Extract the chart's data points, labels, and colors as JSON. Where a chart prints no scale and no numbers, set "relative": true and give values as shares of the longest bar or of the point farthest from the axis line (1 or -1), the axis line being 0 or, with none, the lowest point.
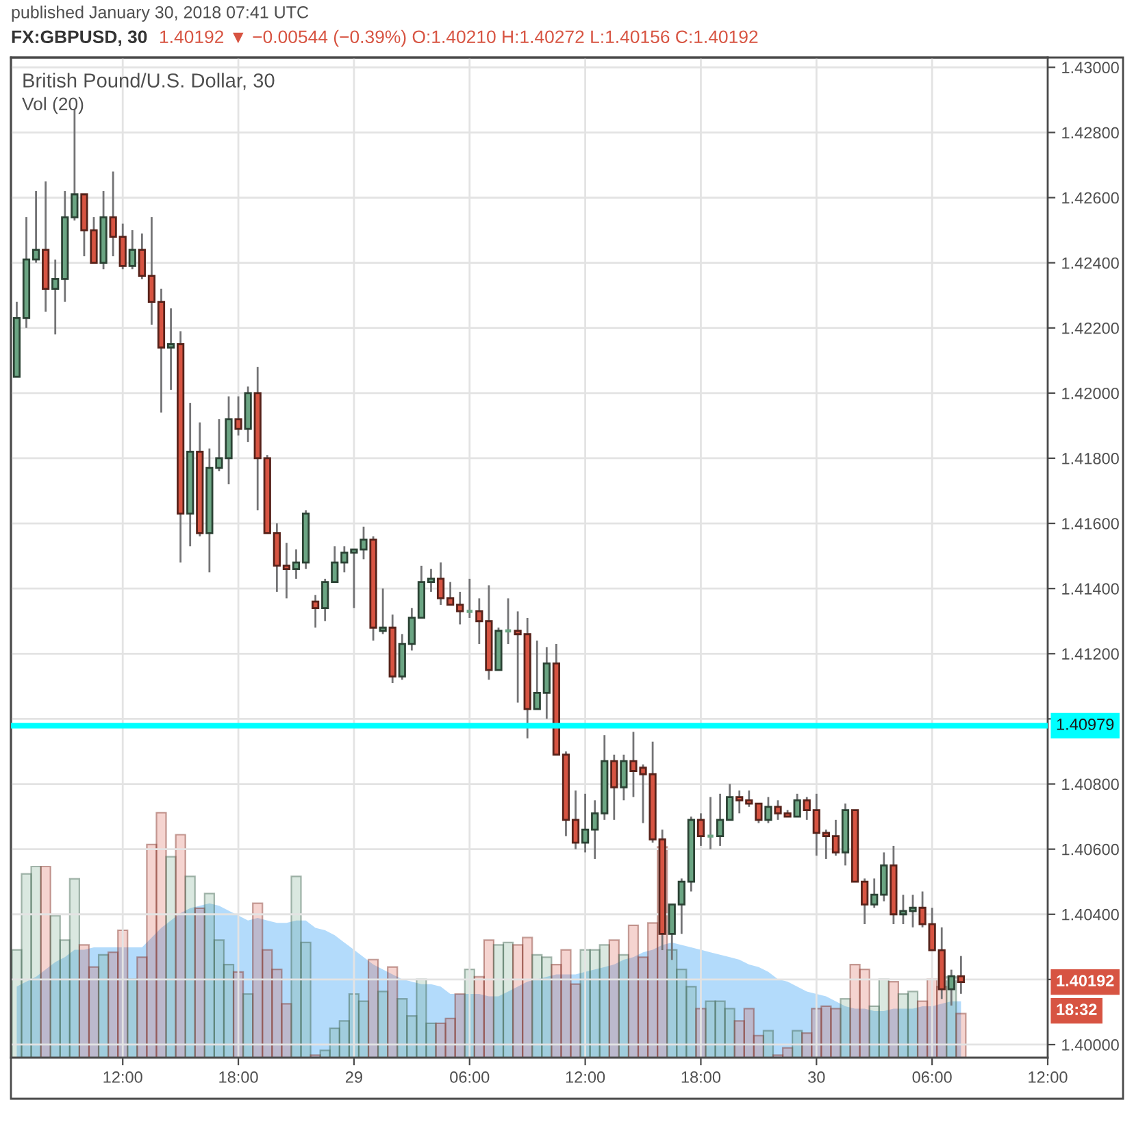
{
  "chart_data": [
    {
      "type": "candlestick",
      "title": "FX:GBPUSD, 30",
      "subtitle": "1.40192 ▼ −0.00544 (−0.39%) O:1.40210 H:1.40272 L:1.40156 C:1.40192",
      "annotations": [
        "published January 30, 2018 07:41 UTC",
        "British Pound/U.S. Dollar, 30",
        "1.40192",
        "18:32"
      ],
      "x": [
        "2018-01-28T06:30",
        "2018-01-28T07:00",
        "2018-01-28T07:30",
        "2018-01-28T08:00",
        "2018-01-28T08:30",
        "2018-01-28T09:00",
        "2018-01-28T09:30",
        "2018-01-28T10:00",
        "2018-01-28T10:30",
        "2018-01-28T11:00",
        "2018-01-28T11:30",
        "2018-01-28T12:00",
        "2018-01-28T12:30",
        "2018-01-28T13:00",
        "2018-01-28T13:30",
        "2018-01-28T14:00",
        "2018-01-28T14:30",
        "2018-01-28T15:00",
        "2018-01-28T15:30",
        "2018-01-28T16:00",
        "2018-01-28T16:30",
        "2018-01-28T17:00",
        "2018-01-28T17:30",
        "2018-01-28T18:00",
        "2018-01-28T18:30",
        "2018-01-28T19:00",
        "2018-01-28T19:30",
        "2018-01-28T20:00",
        "2018-01-28T20:30",
        "2018-01-28T21:00",
        "2018-01-28T21:30",
        "2018-01-28T22:00",
        "2018-01-28T22:30",
        "2018-01-28T23:00",
        "2018-01-28T23:30",
        "2018-01-29T00:00",
        "2018-01-29T00:30",
        "2018-01-29T01:00",
        "2018-01-29T01:30",
        "2018-01-29T02:00",
        "2018-01-29T02:30",
        "2018-01-29T03:00",
        "2018-01-29T03:30",
        "2018-01-29T04:00",
        "2018-01-29T04:30",
        "2018-01-29T05:00",
        "2018-01-29T05:30",
        "2018-01-29T06:00",
        "2018-01-29T06:30",
        "2018-01-29T07:00",
        "2018-01-29T07:30",
        "2018-01-29T08:00",
        "2018-01-29T08:30",
        "2018-01-29T09:00",
        "2018-01-29T09:30",
        "2018-01-29T10:00",
        "2018-01-29T10:30",
        "2018-01-29T11:00",
        "2018-01-29T11:30",
        "2018-01-29T12:00",
        "2018-01-29T12:30",
        "2018-01-29T13:00",
        "2018-01-29T13:30",
        "2018-01-29T14:00",
        "2018-01-29T14:30",
        "2018-01-29T15:00",
        "2018-01-29T15:30",
        "2018-01-29T16:00",
        "2018-01-29T16:30",
        "2018-01-29T17:00",
        "2018-01-29T17:30",
        "2018-01-29T18:00",
        "2018-01-29T18:30",
        "2018-01-29T19:00",
        "2018-01-29T19:30",
        "2018-01-29T20:00",
        "2018-01-29T20:30",
        "2018-01-29T21:00",
        "2018-01-29T21:30",
        "2018-01-29T22:00",
        "2018-01-29T22:30",
        "2018-01-29T23:00",
        "2018-01-29T23:30",
        "2018-01-30T00:00",
        "2018-01-30T00:30",
        "2018-01-30T01:00",
        "2018-01-30T01:30",
        "2018-01-30T02:00",
        "2018-01-30T02:30",
        "2018-01-30T03:00",
        "2018-01-30T03:30",
        "2018-01-30T04:00",
        "2018-01-30T04:30",
        "2018-01-30T05:00",
        "2018-01-30T05:30",
        "2018-01-30T06:00",
        "2018-01-30T06:30",
        "2018-01-30T07:00",
        "2018-01-30T07:30"
      ],
      "ohlc": [
        [
          1.4205,
          1.4228,
          1.4205,
          1.4223
        ],
        [
          1.4223,
          1.4254,
          1.422,
          1.4241
        ],
        [
          1.4241,
          1.4262,
          1.424,
          1.4244
        ],
        [
          1.4244,
          1.4265,
          1.4225,
          1.4232
        ],
        [
          1.4232,
          1.4241,
          1.4218,
          1.4235
        ],
        [
          1.4235,
          1.4262,
          1.4228,
          1.4254
        ],
        [
          1.4254,
          1.4287,
          1.4253,
          1.4261
        ],
        [
          1.4261,
          1.4261,
          1.4242,
          1.425
        ],
        [
          1.425,
          1.4254,
          1.424,
          1.424
        ],
        [
          1.424,
          1.4262,
          1.4238,
          1.4254
        ],
        [
          1.4254,
          1.4268,
          1.4242,
          1.4248
        ],
        [
          1.4248,
          1.4252,
          1.4238,
          1.4239
        ],
        [
          1.4239,
          1.425,
          1.4238,
          1.4244
        ],
        [
          1.4244,
          1.4249,
          1.4235,
          1.4236
        ],
        [
          1.4236,
          1.4254,
          1.4221,
          1.4228
        ],
        [
          1.4228,
          1.4232,
          1.4194,
          1.4214
        ],
        [
          1.4214,
          1.4226,
          1.4201,
          1.4215
        ],
        [
          1.4215,
          1.4219,
          1.4148,
          1.4163
        ],
        [
          1.4163,
          1.4197,
          1.4153,
          1.4182
        ],
        [
          1.4182,
          1.4191,
          1.4156,
          1.4157
        ],
        [
          1.4157,
          1.4183,
          1.4145,
          1.4177
        ],
        [
          1.4177,
          1.4192,
          1.4176,
          1.418
        ],
        [
          1.418,
          1.4199,
          1.4172,
          1.4192
        ],
        [
          1.4192,
          1.4199,
          1.4187,
          1.4189
        ],
        [
          1.4189,
          1.4202,
          1.4185,
          1.42
        ],
        [
          1.42,
          1.4208,
          1.4164,
          1.418
        ],
        [
          1.418,
          1.4181,
          1.4157,
          1.4157
        ],
        [
          1.4157,
          1.416,
          1.4139,
          1.4147
        ],
        [
          1.4147,
          1.4154,
          1.4137,
          1.4146
        ],
        [
          1.4146,
          1.4152,
          1.4143,
          1.4148
        ],
        [
          1.4148,
          1.4164,
          1.4146,
          1.4163
        ],
        [
          1.4136,
          1.4138,
          1.4128,
          1.4134
        ],
        [
          1.4134,
          1.4143,
          1.413,
          1.4142
        ],
        [
          1.4142,
          1.4153,
          1.4142,
          1.4148
        ],
        [
          1.4148,
          1.4153,
          1.4145,
          1.4151
        ],
        [
          1.4151,
          1.4152,
          1.4134,
          1.4152
        ],
        [
          1.4152,
          1.4159,
          1.4149,
          1.4155
        ],
        [
          1.4155,
          1.4156,
          1.4124,
          1.4128
        ],
        [
          1.4127,
          1.414,
          1.4126,
          1.4128
        ],
        [
          1.4128,
          1.4132,
          1.4111,
          1.4113
        ],
        [
          1.4113,
          1.4126,
          1.4112,
          1.4123
        ],
        [
          1.4123,
          1.4134,
          1.4121,
          1.4131
        ],
        [
          1.4131,
          1.4147,
          1.4131,
          1.4142
        ],
        [
          1.4142,
          1.4146,
          1.4139,
          1.4143
        ],
        [
          1.4143,
          1.4148,
          1.4135,
          1.4137
        ],
        [
          1.4137,
          1.4142,
          1.4135,
          1.4135
        ],
        [
          1.4135,
          1.4139,
          1.4129,
          1.4133
        ],
        [
          1.4133,
          1.4143,
          1.4131,
          1.4133
        ],
        [
          1.4133,
          1.4137,
          1.4123,
          1.413
        ],
        [
          1.413,
          1.4141,
          1.4112,
          1.4115
        ],
        [
          1.4115,
          1.4128,
          1.4115,
          1.4127
        ],
        [
          1.4127,
          1.4137,
          1.4123,
          1.4127
        ],
        [
          1.4127,
          1.4133,
          1.4105,
          1.4126
        ],
        [
          1.4126,
          1.4131,
          1.4094,
          1.4103
        ],
        [
          1.4103,
          1.4124,
          1.4103,
          1.4108
        ],
        [
          1.4108,
          1.4122,
          1.41,
          1.4117
        ],
        [
          1.4117,
          1.4123,
          1.4089,
          1.4089
        ],
        [
          1.4089,
          1.409,
          1.4064,
          1.4069
        ],
        [
          1.4069,
          1.4078,
          1.406,
          1.4062
        ],
        [
          1.4062,
          1.4077,
          1.4059,
          1.4066
        ],
        [
          1.4066,
          1.4075,
          1.4057,
          1.4071
        ],
        [
          1.4071,
          1.4095,
          1.4069,
          1.4087
        ],
        [
          1.4087,
          1.4089,
          1.4069,
          1.4079
        ],
        [
          1.4079,
          1.4089,
          1.4075,
          1.4087
        ],
        [
          1.4087,
          1.4096,
          1.4076,
          1.4084
        ],
        [
          1.4085,
          1.4086,
          1.4068,
          1.4083
        ],
        [
          1.4083,
          1.4093,
          1.4062,
          1.4063
        ],
        [
          1.4063,
          1.4066,
          1.4029,
          1.4034
        ],
        [
          1.4034,
          1.4043,
          1.4026,
          1.4043
        ],
        [
          1.4043,
          1.4051,
          1.4034,
          1.405
        ],
        [
          1.405,
          1.407,
          1.4047,
          1.4069
        ],
        [
          1.4069,
          1.4071,
          1.4061,
          1.4064
        ],
        [
          1.4064,
          1.4076,
          1.406,
          1.4064
        ],
        [
          1.4064,
          1.4077,
          1.4061,
          1.4069
        ],
        [
          1.4069,
          1.408,
          1.4069,
          1.4076
        ],
        [
          1.4076,
          1.4078,
          1.4071,
          1.4075
        ],
        [
          1.4075,
          1.4078,
          1.4073,
          1.4074
        ],
        [
          1.4074,
          1.4074,
          1.4068,
          1.4069
        ],
        [
          1.4069,
          1.4076,
          1.4068,
          1.4073
        ],
        [
          1.4073,
          1.4075,
          1.4069,
          1.4071
        ],
        [
          1.4071,
          1.4072,
          1.407,
          1.407
        ],
        [
          1.407,
          1.4077,
          1.407,
          1.4075
        ],
        [
          1.4075,
          1.4076,
          1.4069,
          1.4072
        ],
        [
          1.4072,
          1.4077,
          1.4058,
          1.4065
        ],
        [
          1.4065,
          1.4066,
          1.4057,
          1.4064
        ],
        [
          1.4064,
          1.4069,
          1.4058,
          1.4059
        ],
        [
          1.4059,
          1.4074,
          1.4055,
          1.4072
        ],
        [
          1.4072,
          1.4072,
          1.405,
          1.405
        ],
        [
          1.405,
          1.4051,
          1.4037,
          1.4043
        ],
        [
          1.4043,
          1.4051,
          1.4042,
          1.4046
        ],
        [
          1.4046,
          1.4059,
          1.4044,
          1.4055
        ],
        [
          1.4055,
          1.4061,
          1.4037,
          1.404
        ],
        [
          1.404,
          1.4046,
          1.4037,
          1.4041
        ],
        [
          1.4041,
          1.4046,
          1.4036,
          1.4042
        ],
        [
          1.4042,
          1.4047,
          1.4036,
          1.4037
        ],
        [
          1.4037,
          1.4042,
          1.4029,
          1.4029
        ],
        [
          1.4029,
          1.4036,
          1.4014,
          1.4017
        ],
        [
          1.4017,
          1.4023,
          1.4012,
          1.4021
        ],
        [
          1.4021,
          1.40272,
          1.40156,
          1.40192
        ]
      ],
      "colors": [
        "#6ba583",
        "#6ba583",
        "#6ba583",
        "#d75442",
        "#6ba583",
        "#6ba583",
        "#6ba583",
        "#d75442",
        "#d75442",
        "#6ba583",
        "#d75442",
        "#d75442",
        "#6ba583",
        "#d75442",
        "#d75442",
        "#d75442",
        "#6ba583",
        "#d75442",
        "#6ba583",
        "#d75442",
        "#6ba583",
        "#6ba583",
        "#6ba583",
        "#d75442",
        "#6ba583",
        "#d75442",
        "#d75442",
        "#d75442",
        "#d75442",
        "#6ba583",
        "#6ba583",
        "#d75442",
        "#6ba583",
        "#6ba583",
        "#6ba583",
        "#6ba583",
        "#6ba583",
        "#d75442",
        "#6ba583",
        "#d75442",
        "#6ba583",
        "#6ba583",
        "#6ba583",
        "#6ba583",
        "#d75442",
        "#d75442",
        "#d75442",
        "#6ba583",
        "#d75442",
        "#d75442",
        "#6ba583",
        "#6ba583",
        "#d75442",
        "#d75442",
        "#6ba583",
        "#6ba583",
        "#d75442",
        "#d75442",
        "#d75442",
        "#6ba583",
        "#6ba583",
        "#6ba583",
        "#d75442",
        "#6ba583",
        "#d75442",
        "#d75442",
        "#d75442",
        "#d75442",
        "#6ba583",
        "#6ba583",
        "#6ba583",
        "#d75442",
        "#6ba583",
        "#6ba583",
        "#6ba583",
        "#d75442",
        "#d75442",
        "#d75442",
        "#6ba583",
        "#d75442",
        "#d75442",
        "#6ba583",
        "#d75442",
        "#d75442",
        "#d75442",
        "#d75442",
        "#6ba583",
        "#d75442",
        "#d75442",
        "#6ba583",
        "#6ba583",
        "#d75442",
        "#6ba583",
        "#6ba583",
        "#d75442",
        "#d75442",
        "#d75442",
        "#6ba583",
        "#d75442"
      ],
      "xlim": [
        "2018-01-28T06:12",
        "2018-01-30T12:00"
      ],
      "xticks": [
        {
          "value": "2018-01-28T12:00",
          "label": "12:00"
        },
        {
          "value": "2018-01-28T18:00",
          "label": "18:00"
        },
        {
          "value": "2018-01-29T00:00",
          "label": "29"
        },
        {
          "value": "2018-01-29T06:00",
          "label": "06:00"
        },
        {
          "value": "2018-01-29T12:00",
          "label": "12:00"
        },
        {
          "value": "2018-01-29T18:00",
          "label": "18:00"
        },
        {
          "value": "2018-01-30T00:00",
          "label": "30"
        },
        {
          "value": "2018-01-30T06:00",
          "label": "06:00"
        },
        {
          "value": "2018-01-30T12:00",
          "label": "12:00"
        }
      ],
      "ylim": [
        1.3996,
        1.4303
      ],
      "yticks": [
        {
          "value": 1.4,
          "label": "1.40000"
        },
        {
          "value": 1.402,
          "label": null
        },
        {
          "value": 1.404,
          "label": "1.40400"
        },
        {
          "value": 1.406,
          "label": "1.40600"
        },
        {
          "value": 1.408,
          "label": "1.40800"
        },
        {
          "value": 1.41,
          "label": null
        },
        {
          "value": 1.412,
          "label": "1.41200"
        },
        {
          "value": 1.414,
          "label": "1.41400"
        },
        {
          "value": 1.416,
          "label": "1.41600"
        },
        {
          "value": 1.418,
          "label": "1.41800"
        },
        {
          "value": 1.42,
          "label": "1.42000"
        },
        {
          "value": 1.422,
          "label": "1.42200"
        },
        {
          "value": 1.424,
          "label": "1.42400"
        },
        {
          "value": 1.426,
          "label": "1.42600"
        },
        {
          "value": 1.428,
          "label": "1.42800"
        },
        {
          "value": 1.43,
          "label": "1.43000"
        }
      ],
      "ref_lines": [
        {
          "axis": "y",
          "value": 1.40979,
          "label": "1.40979",
          "color": "#00ffff"
        }
      ],
      "grid": true
    },
    {
      "type": "bar",
      "relative": true,
      "annotations": [
        "Vol (20)"
      ],
      "x": [
        "2018-01-28T06:30",
        "2018-01-28T07:00",
        "2018-01-28T07:30",
        "2018-01-28T08:00",
        "2018-01-28T08:30",
        "2018-01-28T09:00",
        "2018-01-28T09:30",
        "2018-01-28T10:00",
        "2018-01-28T10:30",
        "2018-01-28T11:00",
        "2018-01-28T11:30",
        "2018-01-28T12:00",
        "2018-01-28T12:30",
        "2018-01-28T13:00",
        "2018-01-28T13:30",
        "2018-01-28T14:00",
        "2018-01-28T14:30",
        "2018-01-28T15:00",
        "2018-01-28T15:30",
        "2018-01-28T16:00",
        "2018-01-28T16:30",
        "2018-01-28T17:00",
        "2018-01-28T17:30",
        "2018-01-28T18:00",
        "2018-01-28T18:30",
        "2018-01-28T19:00",
        "2018-01-28T19:30",
        "2018-01-28T20:00",
        "2018-01-28T20:30",
        "2018-01-28T21:00",
        "2018-01-28T21:30",
        "2018-01-28T22:00",
        "2018-01-28T22:30",
        "2018-01-28T23:00",
        "2018-01-28T23:30",
        "2018-01-29T00:00",
        "2018-01-29T00:30",
        "2018-01-29T01:00",
        "2018-01-29T01:30",
        "2018-01-29T02:00",
        "2018-01-29T02:30",
        "2018-01-29T03:00",
        "2018-01-29T03:30",
        "2018-01-29T04:00",
        "2018-01-29T04:30",
        "2018-01-29T05:00",
        "2018-01-29T05:30",
        "2018-01-29T06:00",
        "2018-01-29T06:30",
        "2018-01-29T07:00",
        "2018-01-29T07:30",
        "2018-01-29T08:00",
        "2018-01-29T08:30",
        "2018-01-29T09:00",
        "2018-01-29T09:30",
        "2018-01-29T10:00",
        "2018-01-29T10:30",
        "2018-01-29T11:00",
        "2018-01-29T11:30",
        "2018-01-29T12:00",
        "2018-01-29T12:30",
        "2018-01-29T13:00",
        "2018-01-29T13:30",
        "2018-01-29T14:00",
        "2018-01-29T14:30",
        "2018-01-29T15:00",
        "2018-01-29T15:30",
        "2018-01-29T16:00",
        "2018-01-29T16:30",
        "2018-01-29T17:00",
        "2018-01-29T17:30",
        "2018-01-29T18:00",
        "2018-01-29T18:30",
        "2018-01-29T19:00",
        "2018-01-29T19:30",
        "2018-01-29T20:00",
        "2018-01-29T20:30",
        "2018-01-29T21:00",
        "2018-01-29T21:30",
        "2018-01-29T22:00",
        "2018-01-29T22:30",
        "2018-01-29T23:00",
        "2018-01-29T23:30",
        "2018-01-30T00:00",
        "2018-01-30T00:30",
        "2018-01-30T01:00",
        "2018-01-30T01:30",
        "2018-01-30T02:00",
        "2018-01-30T02:30",
        "2018-01-30T03:00",
        "2018-01-30T03:30",
        "2018-01-30T04:00",
        "2018-01-30T04:30",
        "2018-01-30T05:00",
        "2018-01-30T05:30",
        "2018-01-30T06:00",
        "2018-01-30T06:30",
        "2018-01-30T07:00",
        "2018-01-30T07:30"
      ],
      "series": [
        {
          "type": "bar",
          "colors": [
            "#6ba583",
            "#6ba583",
            "#6ba583",
            "#d75442",
            "#6ba583",
            "#6ba583",
            "#6ba583",
            "#d75442",
            "#d75442",
            "#6ba583",
            "#d75442",
            "#d75442",
            "#6ba583",
            "#d75442",
            "#d75442",
            "#d75442",
            "#6ba583",
            "#d75442",
            "#6ba583",
            "#d75442",
            "#6ba583",
            "#6ba583",
            "#6ba583",
            "#d75442",
            "#6ba583",
            "#d75442",
            "#d75442",
            "#d75442",
            "#d75442",
            "#6ba583",
            "#6ba583",
            "#d75442",
            "#6ba583",
            "#6ba583",
            "#6ba583",
            "#6ba583",
            "#6ba583",
            "#d75442",
            "#6ba583",
            "#d75442",
            "#6ba583",
            "#6ba583",
            "#6ba583",
            "#6ba583",
            "#d75442",
            "#d75442",
            "#d75442",
            "#6ba583",
            "#d75442",
            "#d75442",
            "#6ba583",
            "#6ba583",
            "#d75442",
            "#d75442",
            "#6ba583",
            "#6ba583",
            "#d75442",
            "#d75442",
            "#d75442",
            "#6ba583",
            "#6ba583",
            "#6ba583",
            "#d75442",
            "#6ba583",
            "#d75442",
            "#d75442",
            "#d75442",
            "#d75442",
            "#6ba583",
            "#6ba583",
            "#6ba583",
            "#d75442",
            "#6ba583",
            "#6ba583",
            "#6ba583",
            "#d75442",
            "#d75442",
            "#d75442",
            "#6ba583",
            "#d75442",
            "#d75442",
            "#6ba583",
            "#d75442",
            "#d75442",
            "#d75442",
            "#d75442",
            "#6ba583",
            "#d75442",
            "#d75442",
            "#6ba583",
            "#6ba583",
            "#d75442",
            "#6ba583",
            "#6ba583",
            "#d75442",
            "#d75442",
            "#d75442",
            "#6ba583",
            "#d75442"
          ],
          "values": [
            0.44,
            0.75,
            0.78,
            0.78,
            0.58,
            0.48,
            0.73,
            0.46,
            0.37,
            0.42,
            0.43,
            0.52,
            0.32,
            0.41,
            0.87,
            1,
            0.82,
            0.91,
            0.74,
            0.61,
            0.67,
            0.48,
            0.38,
            0.35,
            0.26,
            0.63,
            0.44,
            0.36,
            0.22,
            0.74,
            0.47,
            0.01,
            0.03,
            0.12,
            0.15,
            0.26,
            0.23,
            0.4,
            0.27,
            0.37,
            0.24,
            0.17,
            0.32,
            0.14,
            0.14,
            0.16,
            0.26,
            0.36,
            0.33,
            0.48,
            0.46,
            0.47,
            0.46,
            0.49,
            0.42,
            0.41,
            0.38,
            0.44,
            0.3,
            0.44,
            0.44,
            0.46,
            0.48,
            0.42,
            0.54,
            0.41,
            0.55,
            0.86,
            0.44,
            0.36,
            0.29,
            0.2,
            0.23,
            0.23,
            0.2,
            0.15,
            0.2,
            0.09,
            0.11,
            0.01,
            0.04,
            0.11,
            0.1,
            0.2,
            0.21,
            0.2,
            0.24,
            0.38,
            0.36,
            0.21,
            0.32,
            0.31,
            0.26,
            0.27,
            0.23,
            0.32,
            0.29,
            0.33,
            0.18
          ]
        },
        {
          "type": "area",
          "color": "#42a5f5",
          "values": [
            0.29,
            0.31,
            0.33,
            0.36,
            0.39,
            0.41,
            0.44,
            0.44,
            0.45,
            0.45,
            0.45,
            0.45,
            0.45,
            0.45,
            0.49,
            0.53,
            0.56,
            0.59,
            0.61,
            0.62,
            0.63,
            0.62,
            0.6,
            0.58,
            0.56,
            0.57,
            0.56,
            0.55,
            0.55,
            0.56,
            0.56,
            0.53,
            0.52,
            0.5,
            0.47,
            0.44,
            0.41,
            0.38,
            0.36,
            0.34,
            0.32,
            0.31,
            0.3,
            0.3,
            0.29,
            0.26,
            0.26,
            0.26,
            0.26,
            0.25,
            0.25,
            0.27,
            0.29,
            0.31,
            0.32,
            0.33,
            0.34,
            0.34,
            0.34,
            0.35,
            0.36,
            0.37,
            0.38,
            0.4,
            0.41,
            0.43,
            0.44,
            0.46,
            0.47,
            0.46,
            0.45,
            0.44,
            0.43,
            0.42,
            0.41,
            0.4,
            0.38,
            0.37,
            0.35,
            0.32,
            0.31,
            0.29,
            0.27,
            0.26,
            0.25,
            0.23,
            0.21,
            0.2,
            0.2,
            0.19,
            0.19,
            0.2,
            0.2,
            0.2,
            0.21,
            0.21,
            0.22,
            0.23,
            0.23
          ]
        }
      ],
      "xlim": [
        "2018-01-28T06:12",
        "2018-01-30T12:00"
      ]
    }
  ]
}
